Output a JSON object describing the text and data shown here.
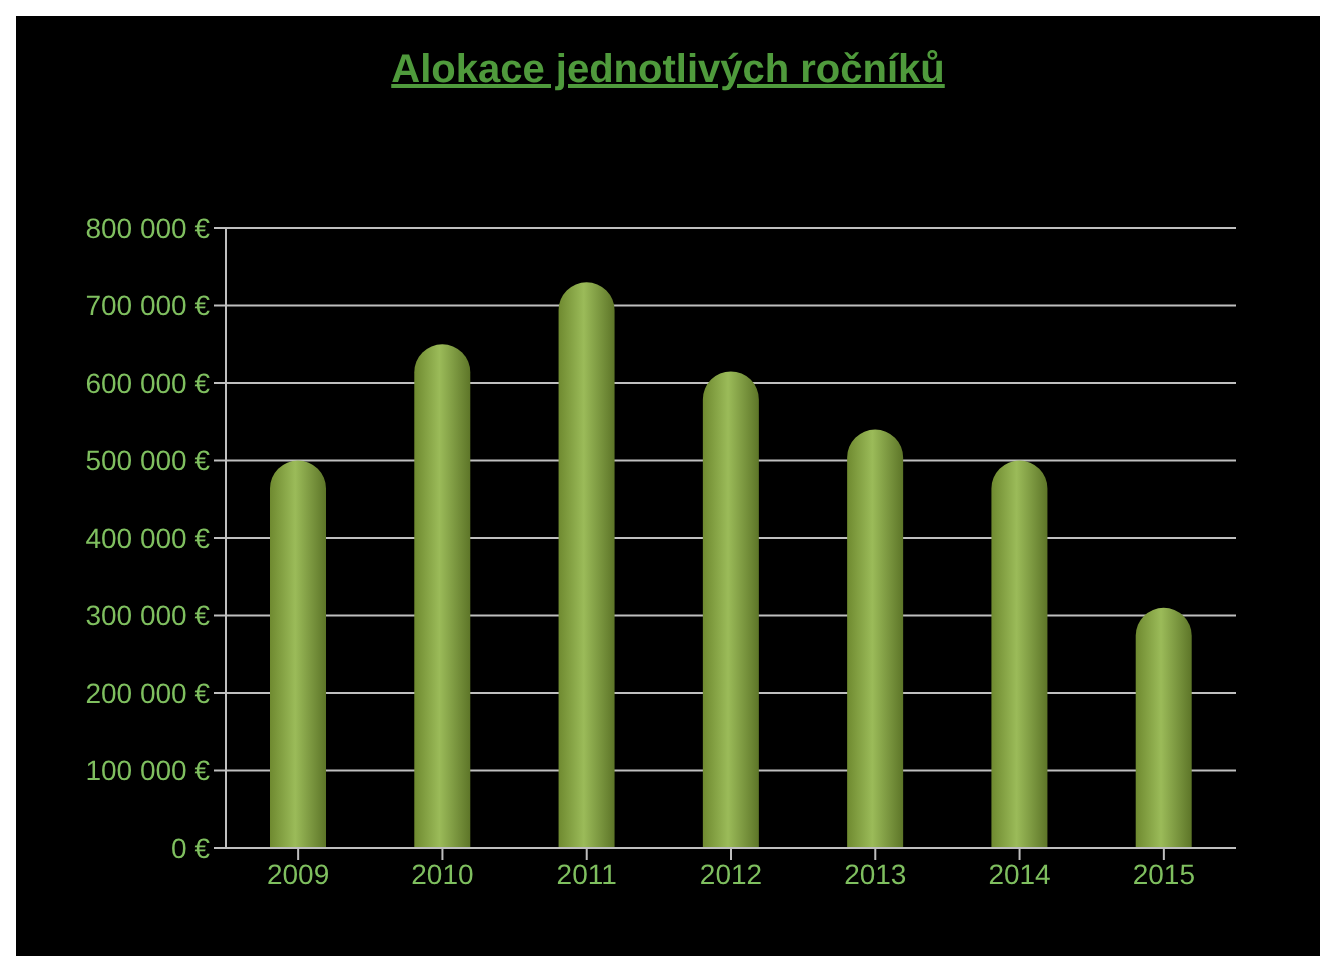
{
  "chart_data": {
    "type": "bar",
    "title": "Alokace jednotlivých ročníků",
    "categories": [
      "2009",
      "2010",
      "2011",
      "2012",
      "2013",
      "2014",
      "2015"
    ],
    "values": [
      500000,
      650000,
      730000,
      615000,
      540000,
      500000,
      310000
    ],
    "color": "#9bbb59",
    "ylim": [
      0,
      800000
    ],
    "yticks": [
      {
        "value": 0,
        "label": "0 €"
      },
      {
        "value": 100000,
        "label": "100 000 €"
      },
      {
        "value": 200000,
        "label": "200 000 €"
      },
      {
        "value": 300000,
        "label": "300 000 €"
      },
      {
        "value": 400000,
        "label": "400 000 €"
      },
      {
        "value": 500000,
        "label": "500 000 €"
      },
      {
        "value": 600000,
        "label": "600 000 €"
      },
      {
        "value": 700000,
        "label": "700 000 €"
      },
      {
        "value": 800000,
        "label": "800 000 €"
      }
    ],
    "grid": "y"
  }
}
